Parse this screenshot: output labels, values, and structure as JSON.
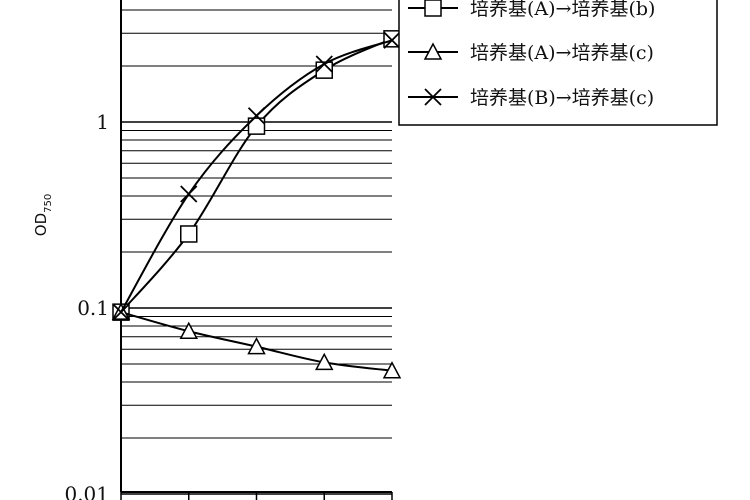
{
  "chart_data": {
    "type": "line",
    "ylabel_main": "OD",
    "ylabel_sub": "750",
    "yscale": "log",
    "ylim": [
      0.01,
      4
    ],
    "y_ticks": [
      {
        "value": 0.01,
        "label": "0.01"
      },
      {
        "value": 0.1,
        "label": "0.1"
      },
      {
        "value": 1,
        "label": "1"
      }
    ],
    "x": [
      0,
      1,
      2,
      3,
      4
    ],
    "xlim": [
      0,
      4
    ],
    "grid": true,
    "legend_position": "top-right",
    "series": [
      {
        "name": "培养基(A)→培养基(b)",
        "marker": "square",
        "values": [
          0.095,
          0.25,
          0.95,
          1.9,
          2.8
        ]
      },
      {
        "name": "培养基(A)→培养基(c)",
        "marker": "triangle",
        "values": [
          0.095,
          0.075,
          0.062,
          0.051,
          0.046
        ]
      },
      {
        "name": "培养基(B)→培养基(c)",
        "marker": "x",
        "values": [
          0.095,
          0.41,
          1.08,
          2.05,
          2.75
        ]
      }
    ]
  }
}
